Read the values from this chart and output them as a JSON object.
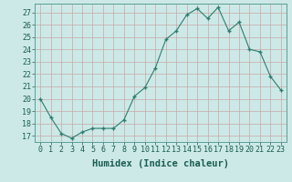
{
  "x": [
    0,
    1,
    2,
    3,
    4,
    5,
    6,
    7,
    8,
    9,
    10,
    11,
    12,
    13,
    14,
    15,
    16,
    17,
    18,
    19,
    20,
    21,
    22,
    23
  ],
  "y": [
    20.0,
    18.5,
    17.2,
    16.8,
    17.3,
    17.6,
    17.6,
    17.6,
    18.3,
    20.2,
    20.9,
    22.5,
    24.8,
    25.5,
    26.8,
    27.3,
    26.5,
    27.4,
    25.5,
    26.2,
    24.0,
    23.8,
    21.8,
    20.7
  ],
  "xlabel": "Humidex (Indice chaleur)",
  "ylabel_ticks": [
    17,
    18,
    19,
    20,
    21,
    22,
    23,
    24,
    25,
    26,
    27
  ],
  "xlim": [
    -0.5,
    23.5
  ],
  "ylim": [
    16.5,
    27.7
  ],
  "line_color": "#2e7d6e",
  "marker_color": "#2e7d6e",
  "bg_color": "#cce9e7",
  "grid_color": "#c8a8a8",
  "tick_label_color": "#1a5c52",
  "xlabel_fontsize": 7.5,
  "tick_fontsize": 6,
  "xticks": [
    0,
    1,
    2,
    3,
    4,
    5,
    6,
    7,
    8,
    9,
    10,
    11,
    12,
    13,
    14,
    15,
    16,
    17,
    18,
    19,
    20,
    21,
    22,
    23
  ]
}
